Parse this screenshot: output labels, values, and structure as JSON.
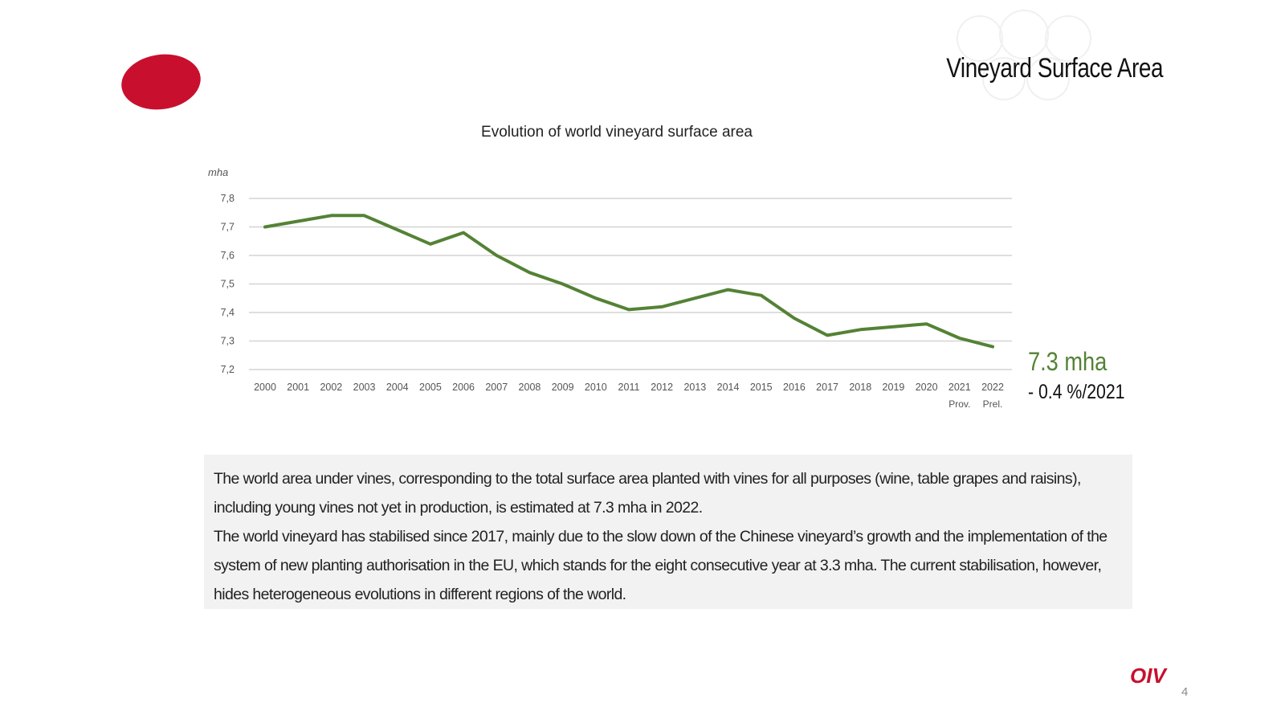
{
  "slide": {
    "title": "Vineyard Surface Area",
    "page_number": "4",
    "logo_text": "OIV"
  },
  "highlight": {
    "value": "7.3 mha",
    "change": "- 0.4 %/2021"
  },
  "description": {
    "paragraph1": "The world area under vines, corresponding to the total surface area planted with vines for all purposes (wine, table grapes and raisins), including young vines not yet in production, is estimated at 7.3 mha in 2022.",
    "paragraph2": "The world vineyard has stabilised since 2017, mainly due to the slow down of the Chinese vineyard’s growth  and the implementation of the system of new planting authorisation in the EU, which stands for the eight consecutive year at 3.3 mha. The current stabilisation, however, hides heterogeneous evolutions in different regions of the world."
  },
  "colors": {
    "accent_red": "#c8102e",
    "line_green": "#548235",
    "text_box_bg": "#f2f2f2"
  },
  "chart_data": {
    "type": "line",
    "title": "Evolution of world vineyard surface area",
    "xlabel": "",
    "ylabel": "mha",
    "ylim": [
      7.2,
      7.8
    ],
    "yticks": [
      "7,2",
      "7,3",
      "7,4",
      "7,5",
      "7,6",
      "7,7",
      "7,8"
    ],
    "grid": true,
    "categories": [
      "2000",
      "2001",
      "2002",
      "2003",
      "2004",
      "2005",
      "2006",
      "2007",
      "2008",
      "2009",
      "2010",
      "2011",
      "2012",
      "2013",
      "2014",
      "2015",
      "2016",
      "2017",
      "2018",
      "2019",
      "2020",
      "2021",
      "2022"
    ],
    "category_sublabels": [
      "",
      "",
      "",
      "",
      "",
      "",
      "",
      "",
      "",
      "",
      "",
      "",
      "",
      "",
      "",
      "",
      "",
      "",
      "",
      "",
      "",
      "Prov.",
      "Prel."
    ],
    "series": [
      {
        "name": "World vineyard surface area",
        "values": [
          7.7,
          7.72,
          7.74,
          7.74,
          7.69,
          7.64,
          7.68,
          7.6,
          7.54,
          7.5,
          7.45,
          7.41,
          7.42,
          7.45,
          7.48,
          7.46,
          7.38,
          7.32,
          7.34,
          7.35,
          7.36,
          7.31,
          7.28
        ]
      }
    ]
  }
}
